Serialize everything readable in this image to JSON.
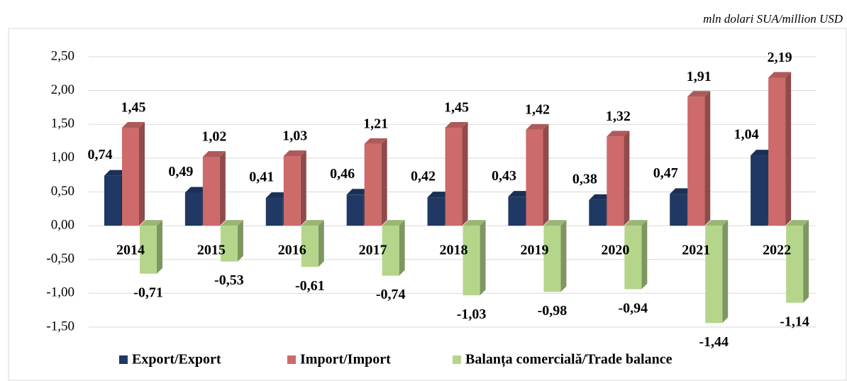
{
  "chart_data": {
    "type": "bar3d",
    "unit_label": "mln dolari SUA/million USD",
    "categories": [
      "2014",
      "2015",
      "2016",
      "2017",
      "2018",
      "2019",
      "2020",
      "2021",
      "2022"
    ],
    "series": [
      {
        "name": "Export/Export",
        "color": "#1f3864",
        "values": [
          0.74,
          0.49,
          0.41,
          0.46,
          0.42,
          0.43,
          0.38,
          0.47,
          1.04
        ],
        "value_labels": [
          "0,74",
          "0,49",
          "0,41",
          "0,46",
          "0,42",
          "0,43",
          "0,38",
          "0,47",
          "1,04"
        ]
      },
      {
        "name": "Import/Import",
        "color": "#cd6a6a",
        "values": [
          1.45,
          1.02,
          1.03,
          1.21,
          1.45,
          1.42,
          1.32,
          1.91,
          2.19
        ],
        "value_labels": [
          "1,45",
          "1,02",
          "1,03",
          "1,21",
          "1,45",
          "1,42",
          "1,32",
          "1,91",
          "2,19"
        ]
      },
      {
        "name": "Balanța comercială/Trade balance",
        "color": "#b5d68a",
        "values": [
          -0.71,
          -0.53,
          -0.61,
          -0.74,
          -1.03,
          -0.98,
          -0.94,
          -1.44,
          -1.14
        ],
        "value_labels": [
          "-0,71",
          "-0,53",
          "-0,61",
          "-0,74",
          "-1,03",
          "-0,98",
          "-0,94",
          "-1,44",
          "-1,14"
        ]
      }
    ],
    "ylim": [
      -1.5,
      2.5
    ],
    "yticks": [
      {
        "value": -1.5,
        "label": "-1,50"
      },
      {
        "value": -1.0,
        "label": "-1,00"
      },
      {
        "value": -0.5,
        "label": "-0,50"
      },
      {
        "value": 0,
        "label": "0,00"
      },
      {
        "value": 0.5,
        "label": "0,50"
      },
      {
        "value": 1.0,
        "label": "1,00"
      },
      {
        "value": 1.5,
        "label": "1,50"
      },
      {
        "value": 2.0,
        "label": "2,00"
      },
      {
        "value": 2.5,
        "label": "2,50"
      }
    ],
    "grid": true,
    "legend": "bottom"
  }
}
